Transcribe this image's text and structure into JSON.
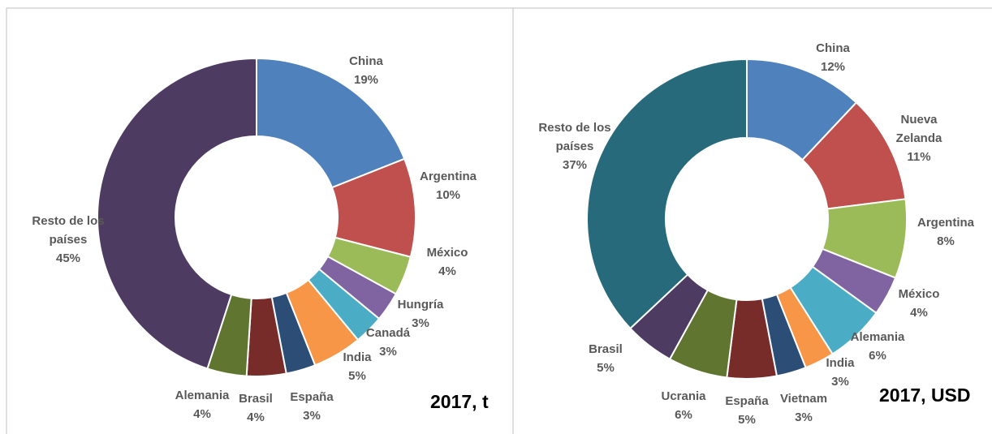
{
  "chart_data": [
    {
      "type": "donut",
      "subtitle": "2017, t",
      "categories": [
        "China",
        "Argentina",
        "México",
        "Hungría",
        "Canadá",
        "India",
        "España",
        "Brasil",
        "Alemania",
        "Resto de los países"
      ],
      "values": [
        19,
        10,
        4,
        3,
        3,
        5,
        3,
        4,
        4,
        45
      ],
      "value_labels": [
        "19%",
        "10%",
        "4%",
        "3%",
        "3%",
        "5%",
        "3%",
        "4%",
        "4%",
        "45%"
      ],
      "colors": [
        "#4f81bd",
        "#c0504d",
        "#9bbb59",
        "#8064a2",
        "#4bacc6",
        "#f79646",
        "#2c4d75",
        "#772c2a",
        "#5f7530",
        "#4d3b62"
      ]
    },
    {
      "type": "donut",
      "subtitle": "2017, USD",
      "categories": [
        "China",
        "Nueva Zelanda",
        "Argentina",
        "México",
        "Alemania",
        "India",
        "Vietnam",
        "España",
        "Ucrania",
        "Brasil",
        "Resto de los países"
      ],
      "values": [
        12,
        11,
        8,
        4,
        6,
        3,
        3,
        5,
        6,
        5,
        37
      ],
      "value_labels": [
        "12%",
        "11%",
        "8%",
        "4%",
        "6%",
        "3%",
        "3%",
        "5%",
        "6%",
        "5%",
        "37%"
      ],
      "colors": [
        "#4f81bd",
        "#c0504d",
        "#9bbb59",
        "#8064a2",
        "#4bacc6",
        "#f79646",
        "#2c4d75",
        "#772c2a",
        "#5f7530",
        "#4d3b62",
        "#276a7c"
      ]
    }
  ]
}
